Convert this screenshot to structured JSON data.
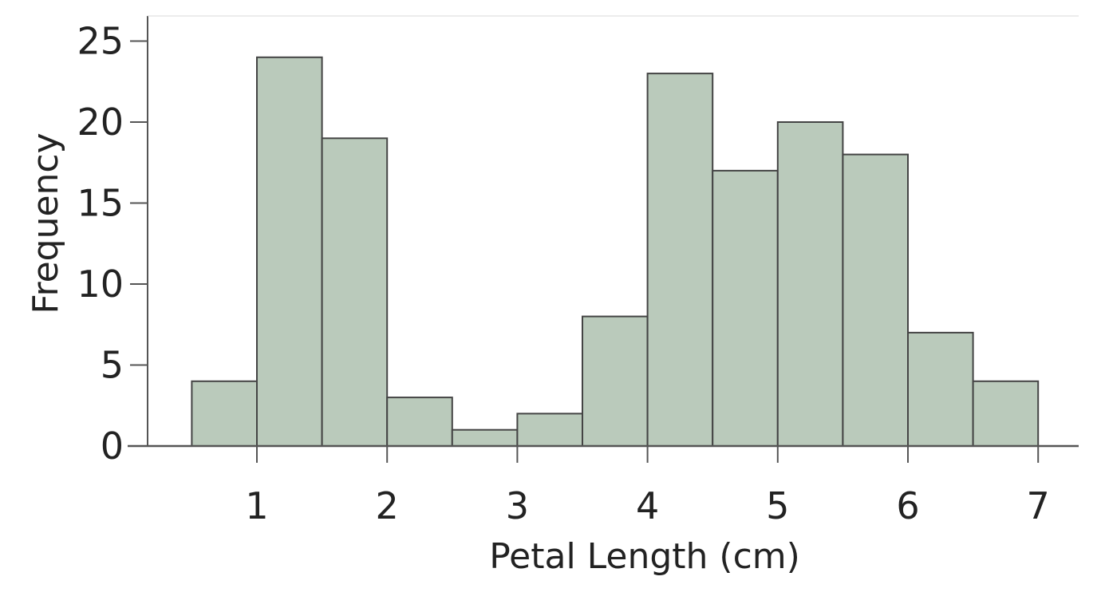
{
  "chart_data": {
    "type": "bar",
    "subtype": "histogram",
    "title": "",
    "xlabel": "Petal Length (cm)",
    "ylabel": "Frequency",
    "xlim": [
      0.5,
      7.0
    ],
    "ylim": [
      0,
      25
    ],
    "x_ticks": [
      1,
      2,
      3,
      4,
      5,
      6,
      7
    ],
    "y_ticks": [
      0,
      5,
      10,
      15,
      20,
      25
    ],
    "grid": false,
    "legend": "none",
    "bar_color": "#bacabb",
    "bar_edge_color": "#444444",
    "bins": [
      {
        "start": 0.5,
        "end": 1.0,
        "count": 4
      },
      {
        "start": 1.0,
        "end": 1.5,
        "count": 24
      },
      {
        "start": 1.5,
        "end": 2.0,
        "count": 19
      },
      {
        "start": 2.0,
        "end": 2.5,
        "count": 3
      },
      {
        "start": 2.5,
        "end": 3.0,
        "count": 1
      },
      {
        "start": 3.0,
        "end": 3.5,
        "count": 2
      },
      {
        "start": 3.5,
        "end": 4.0,
        "count": 8
      },
      {
        "start": 4.0,
        "end": 4.5,
        "count": 23
      },
      {
        "start": 4.5,
        "end": 5.0,
        "count": 17
      },
      {
        "start": 5.0,
        "end": 5.5,
        "count": 20
      },
      {
        "start": 5.5,
        "end": 6.0,
        "count": 18
      },
      {
        "start": 6.0,
        "end": 6.5,
        "count": 7
      },
      {
        "start": 6.5,
        "end": 7.0,
        "count": 4
      }
    ]
  }
}
